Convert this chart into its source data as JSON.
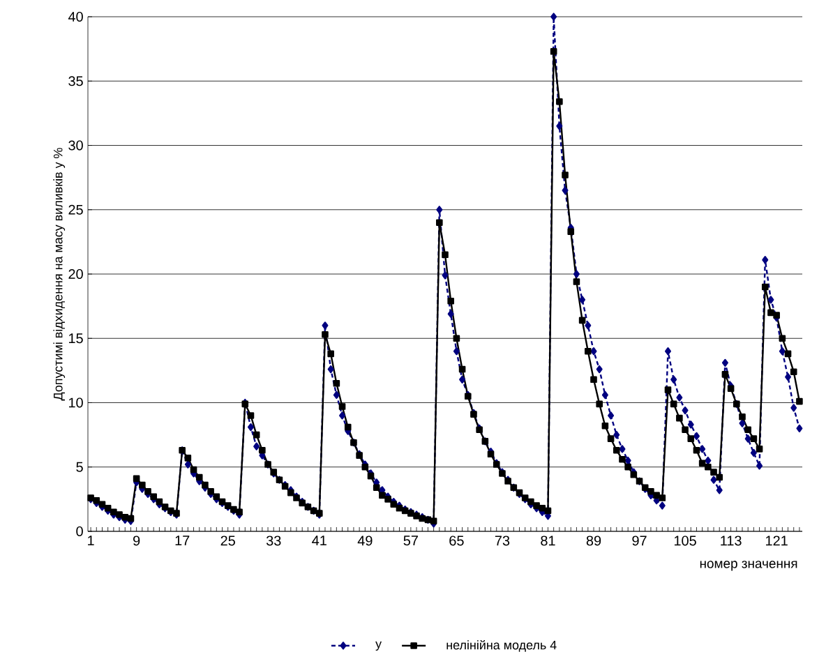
{
  "chart_data": {
    "type": "line",
    "ylabel": "Допустимі відхидення на масу виливків у %",
    "xlabel": "номер значення",
    "categories": [
      "1",
      null,
      null,
      null,
      null,
      null,
      null,
      null,
      "9",
      null,
      null,
      null,
      null,
      null,
      null,
      null,
      "17",
      null,
      null,
      null,
      null,
      null,
      null,
      null,
      "25",
      null,
      null,
      null,
      null,
      null,
      null,
      null,
      "33",
      null,
      null,
      null,
      null,
      null,
      null,
      null,
      "41",
      null,
      null,
      null,
      null,
      null,
      null,
      null,
      "49",
      null,
      null,
      null,
      null,
      null,
      null,
      null,
      "57",
      null,
      null,
      null,
      null,
      null,
      null,
      null,
      "65",
      null,
      null,
      null,
      null,
      null,
      null,
      null,
      "73",
      null,
      null,
      null,
      null,
      null,
      null,
      null,
      "81",
      null,
      null,
      null,
      null,
      null,
      null,
      null,
      "89",
      null,
      null,
      null,
      null,
      null,
      null,
      null,
      "97",
      null,
      null,
      null,
      null,
      null,
      null,
      null,
      "105",
      null,
      null,
      null,
      null,
      null,
      null,
      null,
      "113",
      null,
      null,
      null,
      null,
      null,
      null,
      null,
      "121",
      null,
      null,
      null,
      null
    ],
    "series": [
      {
        "name": "y",
        "color": "#000080",
        "marker": "diamond",
        "line_style": "dashed",
        "values": [
          2.5,
          2.2,
          1.9,
          1.6,
          1.3,
          1.1,
          0.9,
          0.8,
          3.8,
          3.3,
          2.9,
          2.5,
          2.1,
          1.8,
          1.5,
          1.3,
          6.3,
          5.2,
          4.5,
          3.9,
          3.4,
          2.9,
          2.5,
          2.2,
          1.9,
          1.6,
          1.3,
          10.0,
          8.1,
          6.6,
          5.9,
          5.2,
          4.5,
          4.0,
          3.6,
          3.2,
          2.7,
          2.3,
          1.9,
          1.6,
          1.3,
          16.0,
          12.6,
          10.6,
          9.0,
          7.8,
          6.9,
          6.0,
          5.2,
          4.5,
          3.8,
          3.2,
          2.7,
          2.3,
          2.0,
          1.7,
          1.5,
          1.3,
          1.1,
          0.9,
          0.6,
          25.0,
          19.9,
          16.9,
          14.0,
          11.8,
          10.6,
          9.2,
          8.0,
          7.0,
          6.2,
          5.3,
          4.6,
          4.0,
          3.4,
          2.9,
          2.5,
          2.1,
          1.8,
          1.5,
          1.2,
          40.0,
          31.5,
          26.5,
          23.6,
          20.0,
          18.0,
          16.0,
          14.0,
          12.6,
          10.6,
          9.0,
          7.5,
          6.4,
          5.5,
          4.6,
          3.9,
          3.3,
          2.8,
          2.4,
          2.0,
          14.0,
          11.8,
          10.4,
          9.4,
          8.3,
          7.4,
          6.4,
          5.5,
          4.0,
          3.2,
          13.1,
          11.3,
          9.9,
          8.4,
          7.2,
          6.1,
          5.1,
          21.1,
          18.0,
          16.6,
          14.0,
          12.0,
          9.6,
          8.0
        ]
      },
      {
        "name": "нелінійна модель 4",
        "color": "#000000",
        "marker": "square",
        "line_style": "solid",
        "values": [
          2.6,
          2.4,
          2.1,
          1.8,
          1.5,
          1.3,
          1.1,
          1.0,
          4.1,
          3.6,
          3.1,
          2.7,
          2.3,
          1.9,
          1.6,
          1.4,
          6.3,
          5.7,
          4.8,
          4.2,
          3.6,
          3.1,
          2.7,
          2.3,
          2.0,
          1.7,
          1.5,
          9.9,
          9.0,
          7.5,
          6.3,
          5.2,
          4.6,
          4.0,
          3.5,
          3.0,
          2.6,
          2.2,
          1.9,
          1.6,
          1.4,
          15.3,
          13.8,
          11.5,
          9.7,
          8.1,
          6.9,
          5.9,
          5.0,
          4.3,
          3.4,
          2.8,
          2.5,
          2.1,
          1.8,
          1.6,
          1.4,
          1.2,
          1.0,
          0.9,
          0.8,
          24.0,
          21.5,
          17.9,
          15.0,
          12.6,
          10.5,
          9.1,
          7.9,
          7.0,
          6.0,
          5.2,
          4.5,
          3.9,
          3.4,
          3.0,
          2.6,
          2.3,
          2.0,
          1.8,
          1.6,
          37.3,
          33.4,
          27.7,
          23.3,
          19.4,
          16.4,
          14.0,
          11.8,
          9.9,
          8.2,
          7.2,
          6.3,
          5.6,
          5.0,
          4.4,
          3.9,
          3.4,
          3.1,
          2.8,
          2.6,
          11.0,
          9.9,
          8.8,
          7.9,
          7.2,
          6.3,
          5.3,
          5.0,
          4.6,
          4.2,
          12.2,
          11.1,
          9.9,
          8.9,
          7.9,
          7.2,
          6.4,
          19.0,
          17.0,
          16.8,
          15.0,
          13.8,
          12.4,
          10.1
        ]
      }
    ],
    "ylim": [
      0,
      40
    ],
    "yticks": [
      0,
      5,
      10,
      15,
      20,
      25,
      30,
      35,
      40
    ],
    "grid": "y",
    "legend": "bottom"
  }
}
